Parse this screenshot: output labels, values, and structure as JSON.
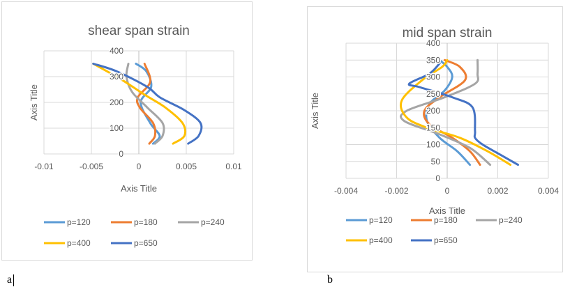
{
  "panels": [
    {
      "letter": "a",
      "colors": {
        "p=120": "#5b9bd5",
        "p=180": "#ed7d31",
        "p=240": "#a5a5a5",
        "p=400": "#ffc000",
        "p=650": "#4472c4"
      }
    },
    {
      "letter": "b"
    }
  ],
  "chart_data": [
    {
      "type": "line",
      "title": "shear span strain",
      "xlabel": "Axis Title",
      "ylabel": "Axis Title",
      "xlim": [
        -0.01,
        0.01
      ],
      "ylim": [
        0,
        400
      ],
      "xticks": [
        -0.01,
        -0.005,
        0,
        0.005,
        0.01
      ],
      "xtick_labels": [
        "-0.01",
        "-0.005",
        "0",
        "0.005",
        "0.01"
      ],
      "yticks": [
        0,
        100,
        200,
        300,
        400
      ],
      "ytick_labels": [
        "0",
        "100",
        "200",
        "300",
        "400"
      ],
      "grid": true,
      "legend_position": "bottom",
      "series": [
        {
          "name": "p=120",
          "color": "#5b9bd5",
          "x": [
            0.0015,
            0.0022,
            0.0012,
            0.0002,
            0.0013,
            0.0008,
            -0.0003
          ],
          "y": [
            40,
            70,
            120,
            200,
            260,
            320,
            350
          ]
        },
        {
          "name": "p=180",
          "color": "#ed7d31",
          "x": [
            0.0011,
            0.0017,
            0.0015,
            0.0001,
            -0.0001,
            0.0012,
            0.0006
          ],
          "y": [
            40,
            70,
            120,
            180,
            220,
            280,
            350
          ]
        },
        {
          "name": "p=240",
          "color": "#a5a5a5",
          "x": [
            0.0017,
            0.0025,
            0.0025,
            0.0009,
            -0.0007,
            -0.0013,
            -0.0011
          ],
          "y": [
            40,
            70,
            120,
            180,
            240,
            300,
            350
          ]
        },
        {
          "name": "p=400",
          "color": "#ffc000",
          "x": [
            0.0036,
            0.0048,
            0.0046,
            0.0028,
            0.0006,
            -0.0019,
            -0.0048
          ],
          "y": [
            40,
            70,
            120,
            180,
            230,
            290,
            350
          ]
        },
        {
          "name": "p=650",
          "color": "#4472c4",
          "x": [
            0.0052,
            0.0063,
            0.0065,
            0.0048,
            0.0022,
            0.0009,
            -0.0023,
            -0.0048
          ],
          "y": [
            40,
            70,
            120,
            170,
            220,
            260,
            320,
            350
          ]
        }
      ]
    },
    {
      "type": "line",
      "title": "mid span strain",
      "xlabel": "Axis Title",
      "ylabel": "Axis Title",
      "xlim": [
        -0.004,
        0.004
      ],
      "ylim": [
        0,
        400
      ],
      "xticks": [
        -0.004,
        -0.002,
        0,
        0.002,
        0.004
      ],
      "xtick_labels": [
        "-0.004",
        "-0.002",
        "0",
        "0.002",
        "0.004"
      ],
      "yticks": [
        0,
        50,
        100,
        150,
        200,
        250,
        300,
        350,
        400
      ],
      "ytick_labels": [
        "0",
        "50",
        "100",
        "150",
        "200",
        "250",
        "300",
        "350",
        "400"
      ],
      "grid": true,
      "legend_position": "bottom",
      "series": [
        {
          "name": "p=120",
          "color": "#5b9bd5",
          "x": [
            0.0009,
            0.0004,
            -0.0003,
            -0.0008,
            -0.0007,
            -0.0001,
            0.0002,
            0.0,
            -0.0003
          ],
          "y": [
            40,
            80,
            120,
            170,
            220,
            260,
            300,
            330,
            350
          ]
        },
        {
          "name": "p=180",
          "color": "#ed7d31",
          "x": [
            0.0013,
            0.0009,
            0.0002,
            -0.0007,
            -0.0009,
            -0.0003,
            0.0007,
            0.0005,
            -0.0001
          ],
          "y": [
            40,
            80,
            120,
            160,
            200,
            240,
            290,
            330,
            350
          ]
        },
        {
          "name": "p=240",
          "color": "#a5a5a5",
          "x": [
            0.0017,
            0.0009,
            -0.0003,
            -0.0017,
            -0.0016,
            -0.0001,
            0.0011,
            0.0012,
            0.0012
          ],
          "y": [
            40,
            90,
            130,
            170,
            200,
            240,
            280,
            310,
            350
          ]
        },
        {
          "name": "p=400",
          "color": "#ffc000",
          "x": [
            0.0025,
            0.0016,
            0.0005,
            -0.0008,
            -0.0016,
            -0.0018,
            -0.001,
            -0.0002,
            0.0
          ],
          "y": [
            40,
            80,
            120,
            150,
            180,
            230,
            290,
            330,
            350
          ]
        },
        {
          "name": "p=650",
          "color": "#4472c4",
          "x": [
            0.0028,
            0.0021,
            0.0014,
            0.0011,
            0.0011,
            0.001,
            0.0002,
            -0.0011,
            -0.0015,
            -0.0007,
            -0.0003
          ],
          "y": [
            40,
            70,
            100,
            120,
            140,
            210,
            240,
            270,
            280,
            310,
            340
          ]
        }
      ]
    }
  ]
}
